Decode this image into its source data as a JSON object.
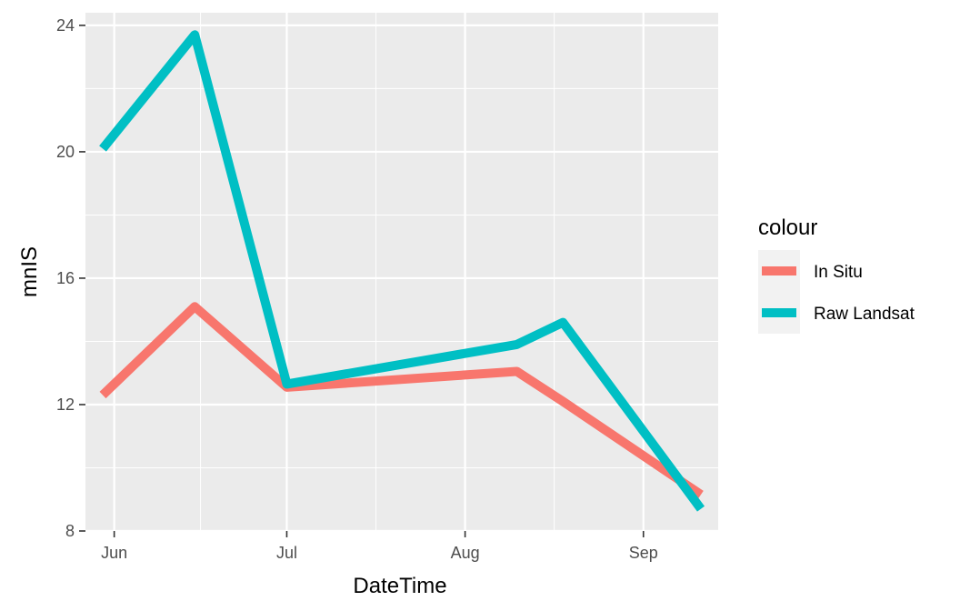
{
  "chart_data": {
    "type": "line",
    "xlabel": "DateTime",
    "ylabel": "mnIS",
    "x_type": "date",
    "xlim": [
      "2015-05-27",
      "2015-09-14"
    ],
    "ylim": [
      8,
      24.4
    ],
    "x_ticks": [
      {
        "date": "2015-06-01",
        "label": "Jun"
      },
      {
        "date": "2015-07-01",
        "label": "Jul"
      },
      {
        "date": "2015-08-01",
        "label": "Aug"
      },
      {
        "date": "2015-09-01",
        "label": "Sep"
      }
    ],
    "y_ticks": [
      8,
      12,
      16,
      20,
      24
    ],
    "grid": true,
    "legend": {
      "title": "colour",
      "position": "right"
    },
    "series": [
      {
        "name": "In Situ",
        "color": "#F8766D",
        "points": [
          {
            "x": "2015-05-30",
            "y": 12.3
          },
          {
            "x": "2015-06-15",
            "y": 15.1
          },
          {
            "x": "2015-07-01",
            "y": 12.55
          },
          {
            "x": "2015-08-10",
            "y": 13.05
          },
          {
            "x": "2015-08-18",
            "y": 12.1
          },
          {
            "x": "2015-09-11",
            "y": 9.15
          }
        ]
      },
      {
        "name": "Raw Landsat",
        "color": "#00BFC4",
        "points": [
          {
            "x": "2015-05-30",
            "y": 20.1
          },
          {
            "x": "2015-06-15",
            "y": 23.7
          },
          {
            "x": "2015-07-01",
            "y": 12.65
          },
          {
            "x": "2015-08-10",
            "y": 13.9
          },
          {
            "x": "2015-08-18",
            "y": 14.6
          },
          {
            "x": "2015-09-11",
            "y": 8.7
          }
        ]
      }
    ]
  }
}
